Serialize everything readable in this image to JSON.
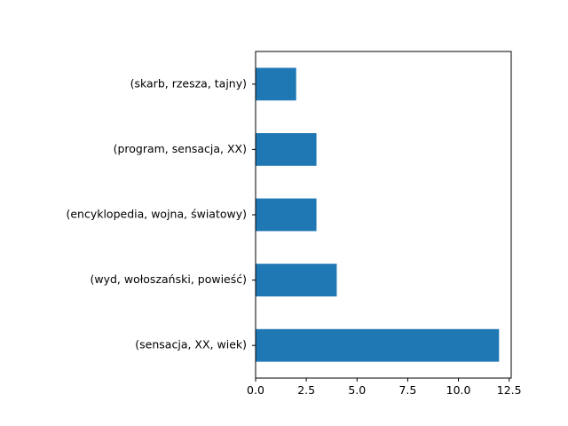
{
  "chart_data": {
    "type": "bar",
    "orientation": "horizontal",
    "categories": [
      "(sensacja, XX, wiek)",
      "(wyd, wołoszański, powieść)",
      "(encyklopedia, wojna, światowy)",
      "(program, sensacja, XX)",
      "(skarb, rzesza, tajny)"
    ],
    "values": [
      12,
      4,
      3,
      3,
      2
    ],
    "x_ticks": [
      0,
      2.5,
      5,
      7.5,
      10,
      12.5
    ],
    "x_tick_labels": [
      "0.0",
      "2.5",
      "5.0",
      "7.5",
      "10.0",
      "12.5"
    ],
    "xlim": [
      0,
      12.6
    ],
    "title": "",
    "xlabel": "",
    "ylabel": "",
    "grid": false,
    "bar_color": "#1f77b4"
  }
}
